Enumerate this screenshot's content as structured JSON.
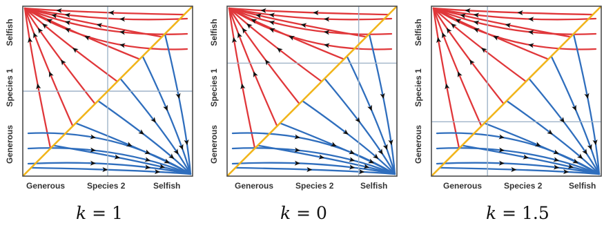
{
  "axis_labels": {
    "y_top": "Selfish",
    "y_mid": "Species 1",
    "y_bottom": "Generous",
    "x_left": "Generous",
    "x_mid": "Species 2",
    "x_right": "Selfish"
  },
  "panels": [
    {
      "k_var": "k",
      "k_eq": " = ",
      "k_value": "1"
    },
    {
      "k_var": "k",
      "k_eq": " = ",
      "k_value": "0"
    },
    {
      "k_var": "k",
      "k_eq": " = ",
      "k_value": "1.5"
    }
  ],
  "colors": {
    "selfish_species1_trajectories": "#e0373a",
    "selfish_species2_trajectories": "#2f6ebd",
    "diagonal": "#f1b51c",
    "guide_lines": "#9fb3c8",
    "arrows": "#111111"
  }
}
